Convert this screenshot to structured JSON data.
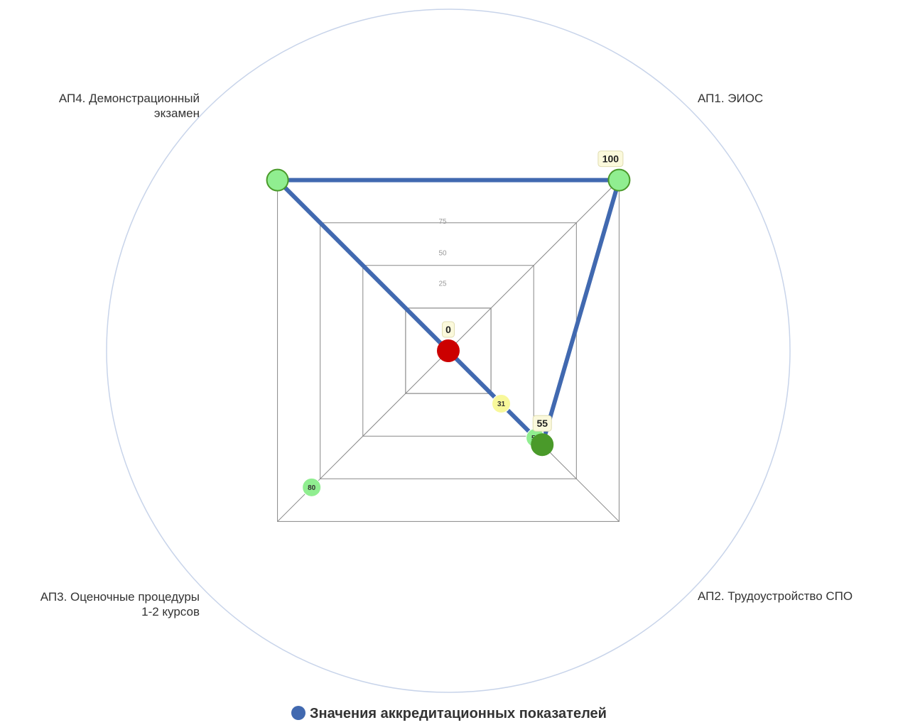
{
  "chart_data": {
    "type": "radar",
    "axes": [
      {
        "label": "АП1. ЭИОС",
        "value": 100
      },
      {
        "label": "АП2. Трудоустройство СПО",
        "value": 55
      },
      {
        "label": "АП3. Оценочные процедуры\n1-2 курсов",
        "value": 0
      },
      {
        "label": "АП4. Демонстрационный\nэкзамен",
        "value": 100
      }
    ],
    "rmax": 100,
    "rings": [
      25,
      50,
      75
    ],
    "series": [
      {
        "name": "Значения аккредитационных показателей",
        "color": "#4169b0",
        "values": [
          100,
          55,
          0,
          100
        ]
      }
    ],
    "marker_labels": [
      {
        "axis": 0,
        "value": 100,
        "label": "100"
      },
      {
        "axis": 1,
        "value": 55,
        "label": "55"
      },
      {
        "axis": 2,
        "value": 0,
        "label": "0"
      }
    ],
    "reference_points": [
      {
        "axis": 0,
        "value": 100,
        "label": "100",
        "color": "#90ee90"
      },
      {
        "axis": 1,
        "value": 51,
        "label": "51",
        "color": "#90ee90"
      },
      {
        "axis": 1,
        "value": 31,
        "label": "31",
        "color": "#f8f89a"
      },
      {
        "axis": 2,
        "value": 80,
        "label": "80",
        "color": "#90ee90"
      }
    ],
    "marker_colors": [
      "#90ee90",
      "#4a9a2a",
      "#cc0000",
      "#90ee90"
    ],
    "legend": {
      "position": "bottom"
    }
  }
}
